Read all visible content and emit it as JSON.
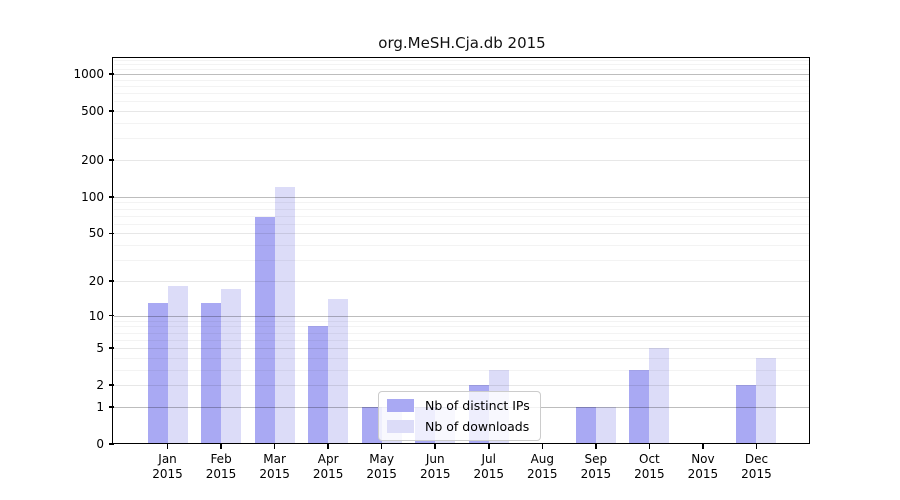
{
  "title": "org.MeSH.Cja.db 2015",
  "chart_data": {
    "type": "bar",
    "title": "org.MeSH.Cja.db 2015",
    "scale": "pseudo-log (log10(1+x))",
    "grid": true,
    "legend_position": "inside bottom-center",
    "categories": [
      "Jan 2015",
      "Feb 2015",
      "Mar 2015",
      "Apr 2015",
      "May 2015",
      "Jun 2015",
      "Jul 2015",
      "Aug 2015",
      "Sep 2015",
      "Oct 2015",
      "Nov 2015",
      "Dec 2015"
    ],
    "series": [
      {
        "name": "Nb of distinct IPs",
        "color": "#a9a9f3",
        "values": [
          13,
          13,
          69,
          8,
          1,
          1,
          2,
          0,
          1,
          3,
          0,
          2
        ]
      },
      {
        "name": "Nb of downloads",
        "color": "#dcdcf8",
        "values": [
          18,
          17,
          120,
          14,
          1,
          1,
          3,
          0,
          1,
          5,
          0,
          4
        ]
      }
    ],
    "y_ticks": [
      0,
      1,
      2,
      5,
      10,
      20,
      50,
      100,
      200,
      500,
      1000
    ],
    "ylim": [
      0,
      1325
    ],
    "xlabel": "",
    "ylabel": ""
  },
  "colors": {
    "bar_distinct_ips": "#a9a9f3",
    "bar_downloads": "#dcdcf8",
    "grid_major": "#bdbdbd",
    "grid_mid": "#e7e7e7",
    "grid_minor": "#f3f3f3",
    "axis": "#000000",
    "background": "#ffffff"
  }
}
